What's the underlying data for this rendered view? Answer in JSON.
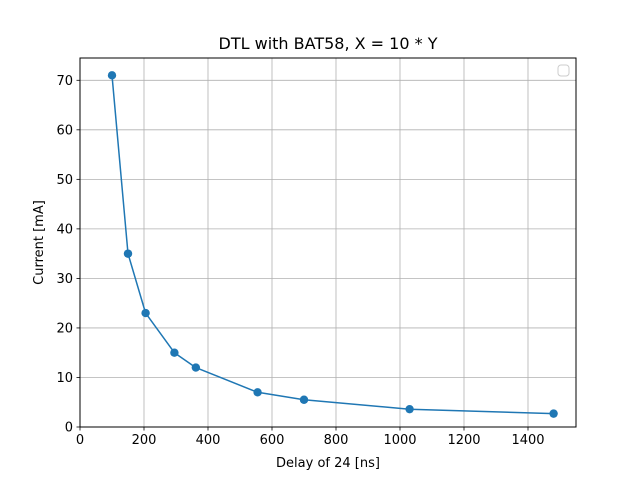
{
  "chart_data": {
    "type": "line",
    "title": "DTL with BAT58, X = 10 * Y",
    "xlabel": "Delay of 24 [ns]",
    "ylabel": "Current [mA]",
    "xlim": [
      0,
      1550
    ],
    "ylim": [
      0,
      74.5
    ],
    "xticks": [
      0,
      200,
      400,
      600,
      800,
      1000,
      1200,
      1400
    ],
    "yticks": [
      0,
      10,
      20,
      30,
      40,
      50,
      60,
      70
    ],
    "grid": true,
    "legend": {
      "placement": "top-right",
      "entries": []
    },
    "series": [
      {
        "color": "#1f77b4",
        "marker": "circle",
        "x": [
          100,
          150,
          205,
          295,
          362,
          555,
          700,
          1030,
          1480
        ],
        "y": [
          71,
          35,
          23,
          15,
          12,
          7,
          5.5,
          3.6,
          2.7
        ]
      }
    ]
  }
}
